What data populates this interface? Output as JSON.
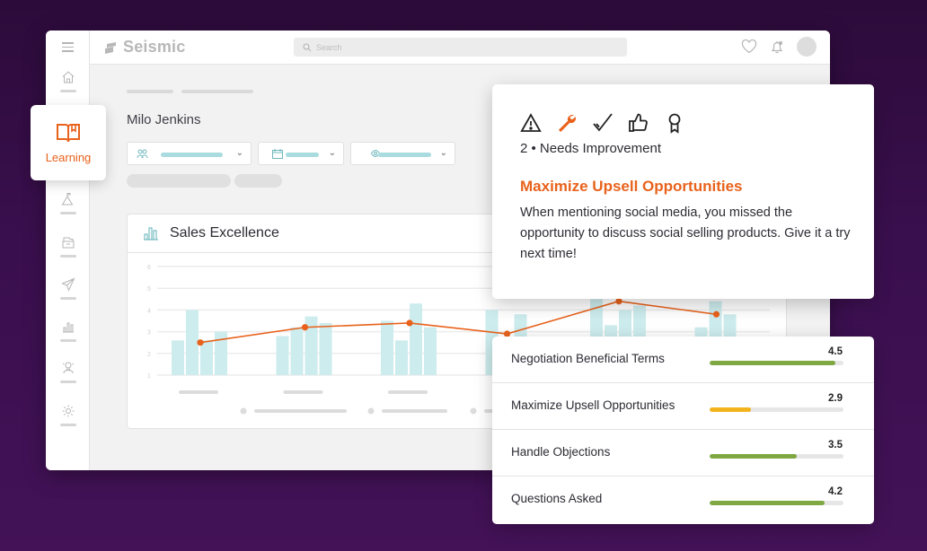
{
  "colors": {
    "accent": "#e8621c",
    "bar_teal": "#cdeced",
    "line_orange": "#e8621c",
    "score_green": "#7fa843",
    "score_yellow": "#f2b31d",
    "background_purple": "#3a0f4e"
  },
  "app": {
    "brand": "Seismic",
    "search": {
      "placeholder": "Search",
      "value": ""
    },
    "header_icons": [
      "heart-icon",
      "bell-icon",
      "avatar"
    ]
  },
  "sidebar": {
    "items": [
      {
        "name": "home",
        "icon": "home-icon"
      },
      {
        "name": "learning",
        "icon": "book-icon",
        "label": "Learning",
        "active": true
      },
      {
        "name": "goals",
        "icon": "mountain-flag-icon"
      },
      {
        "name": "content",
        "icon": "folder-drawer-icon"
      },
      {
        "name": "send",
        "icon": "paper-plane-icon"
      },
      {
        "name": "insights",
        "icon": "bar-chart-icon"
      },
      {
        "name": "coaching",
        "icon": "lightbulb-person-icon"
      },
      {
        "name": "settings",
        "icon": "gear-icon"
      }
    ]
  },
  "main": {
    "person_name": "Milo Jenkins",
    "filters": [
      {
        "icon": "people-icon"
      },
      {
        "icon": "calendar-icon"
      },
      {
        "icon": "eye-icon"
      }
    ]
  },
  "card": {
    "title": "Sales Excellence",
    "icon": "bar-chart-icon"
  },
  "chart_data": {
    "type": "bar",
    "title": "Sales Excellence",
    "ylim": [
      1,
      6
    ],
    "yticks": [
      1,
      2,
      3,
      4,
      5,
      6
    ],
    "grid": true,
    "groups": [
      {
        "bars": [
          2.6,
          4.0,
          2.6,
          3.0
        ],
        "avg": 2.5
      },
      {
        "bars": [
          2.8,
          3.2,
          3.7,
          3.4
        ],
        "avg": 3.2
      },
      {
        "bars": [
          3.5,
          2.6,
          4.3,
          3.2
        ],
        "avg": 3.4
      },
      {
        "bars": [
          4.0,
          2.7,
          3.8
        ],
        "avg": 2.9
      },
      {
        "bars": [
          4.5,
          3.3,
          4.0,
          4.2
        ],
        "avg": 4.4
      },
      {
        "bars": [
          3.2,
          4.4,
          3.8
        ],
        "avg": 3.8
      }
    ],
    "series": [
      {
        "name": "scores",
        "kind": "bar"
      },
      {
        "name": "average",
        "kind": "line",
        "values": [
          2.5,
          3.2,
          3.4,
          2.9,
          4.4,
          3.8
        ]
      }
    ]
  },
  "feedback": {
    "icons": [
      "warning-icon",
      "wrench-icon",
      "check-icon",
      "thumbs-up-icon",
      "award-ribbon-icon"
    ],
    "active_icon": "wrench-icon",
    "rating": "2 • Needs Improvement",
    "title": "Maximize Upsell Opportunities",
    "body": "When mentioning social media, you missed the opportunity to discuss social selling products. Give it a try next time!"
  },
  "scores": [
    {
      "label": "Negotiation Beneficial Terms",
      "value": "4.5",
      "pct": 94,
      "color": "#7fa843"
    },
    {
      "label": "Maximize Upsell Opportunities",
      "value": "2.9",
      "pct": 31,
      "color": "#f2b31d"
    },
    {
      "label": "Handle Objections",
      "value": "3.5",
      "pct": 65,
      "color": "#7fa843"
    },
    {
      "label": "Questions Asked",
      "value": "4.2",
      "pct": 86,
      "color": "#7fa843"
    }
  ]
}
